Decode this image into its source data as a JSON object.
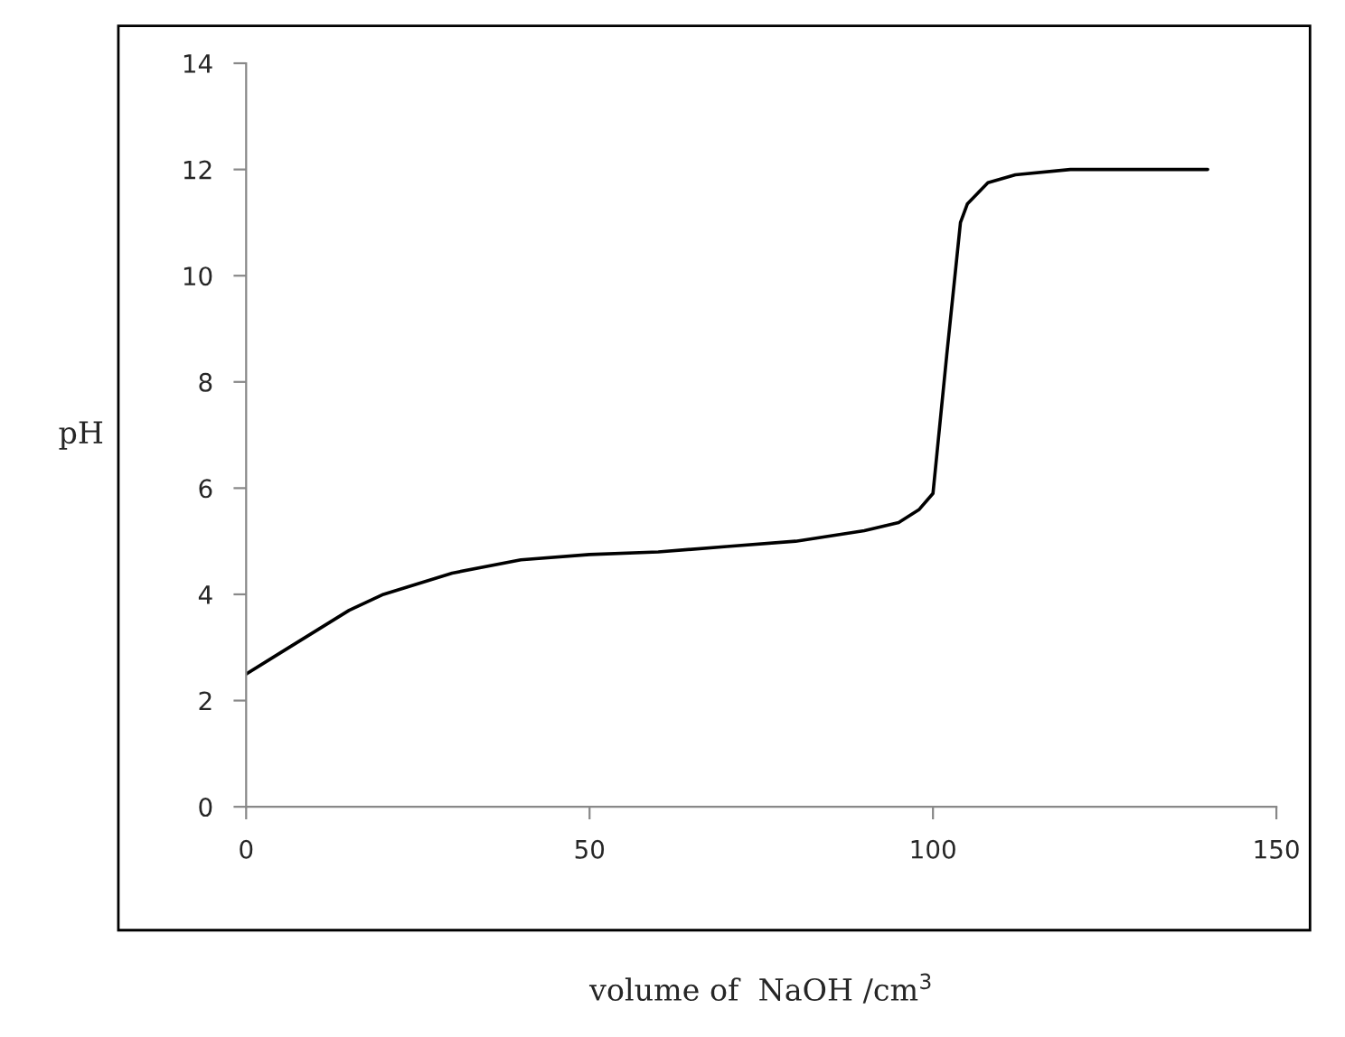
{
  "chart_data": {
    "type": "line",
    "xlabel": "volume of  NaOH /cm$^{3}$",
    "ylabel": "pH",
    "series": [
      {
        "color": "#000000",
        "x": [
          0,
          5,
          10,
          15,
          20,
          25,
          30,
          40,
          50,
          60,
          70,
          80,
          90,
          95,
          98,
          100,
          102,
          104,
          105,
          108,
          112,
          120,
          130,
          140
        ],
        "values": [
          2.5,
          2.9,
          3.3,
          3.7,
          4.0,
          4.2,
          4.4,
          4.65,
          4.75,
          4.8,
          4.9,
          5.0,
          5.2,
          5.35,
          5.6,
          5.9,
          8.5,
          11.0,
          11.35,
          11.75,
          11.9,
          12.0,
          12.0,
          12.0
        ]
      }
    ],
    "xlim": [
      0,
      150
    ],
    "xticks": [
      0,
      50,
      100,
      150
    ],
    "ylim": [
      0,
      14
    ],
    "yticks": [
      0,
      2,
      4,
      6,
      8,
      10,
      12,
      14
    ],
    "grid": false,
    "marker": "none",
    "line_style": "solid"
  }
}
